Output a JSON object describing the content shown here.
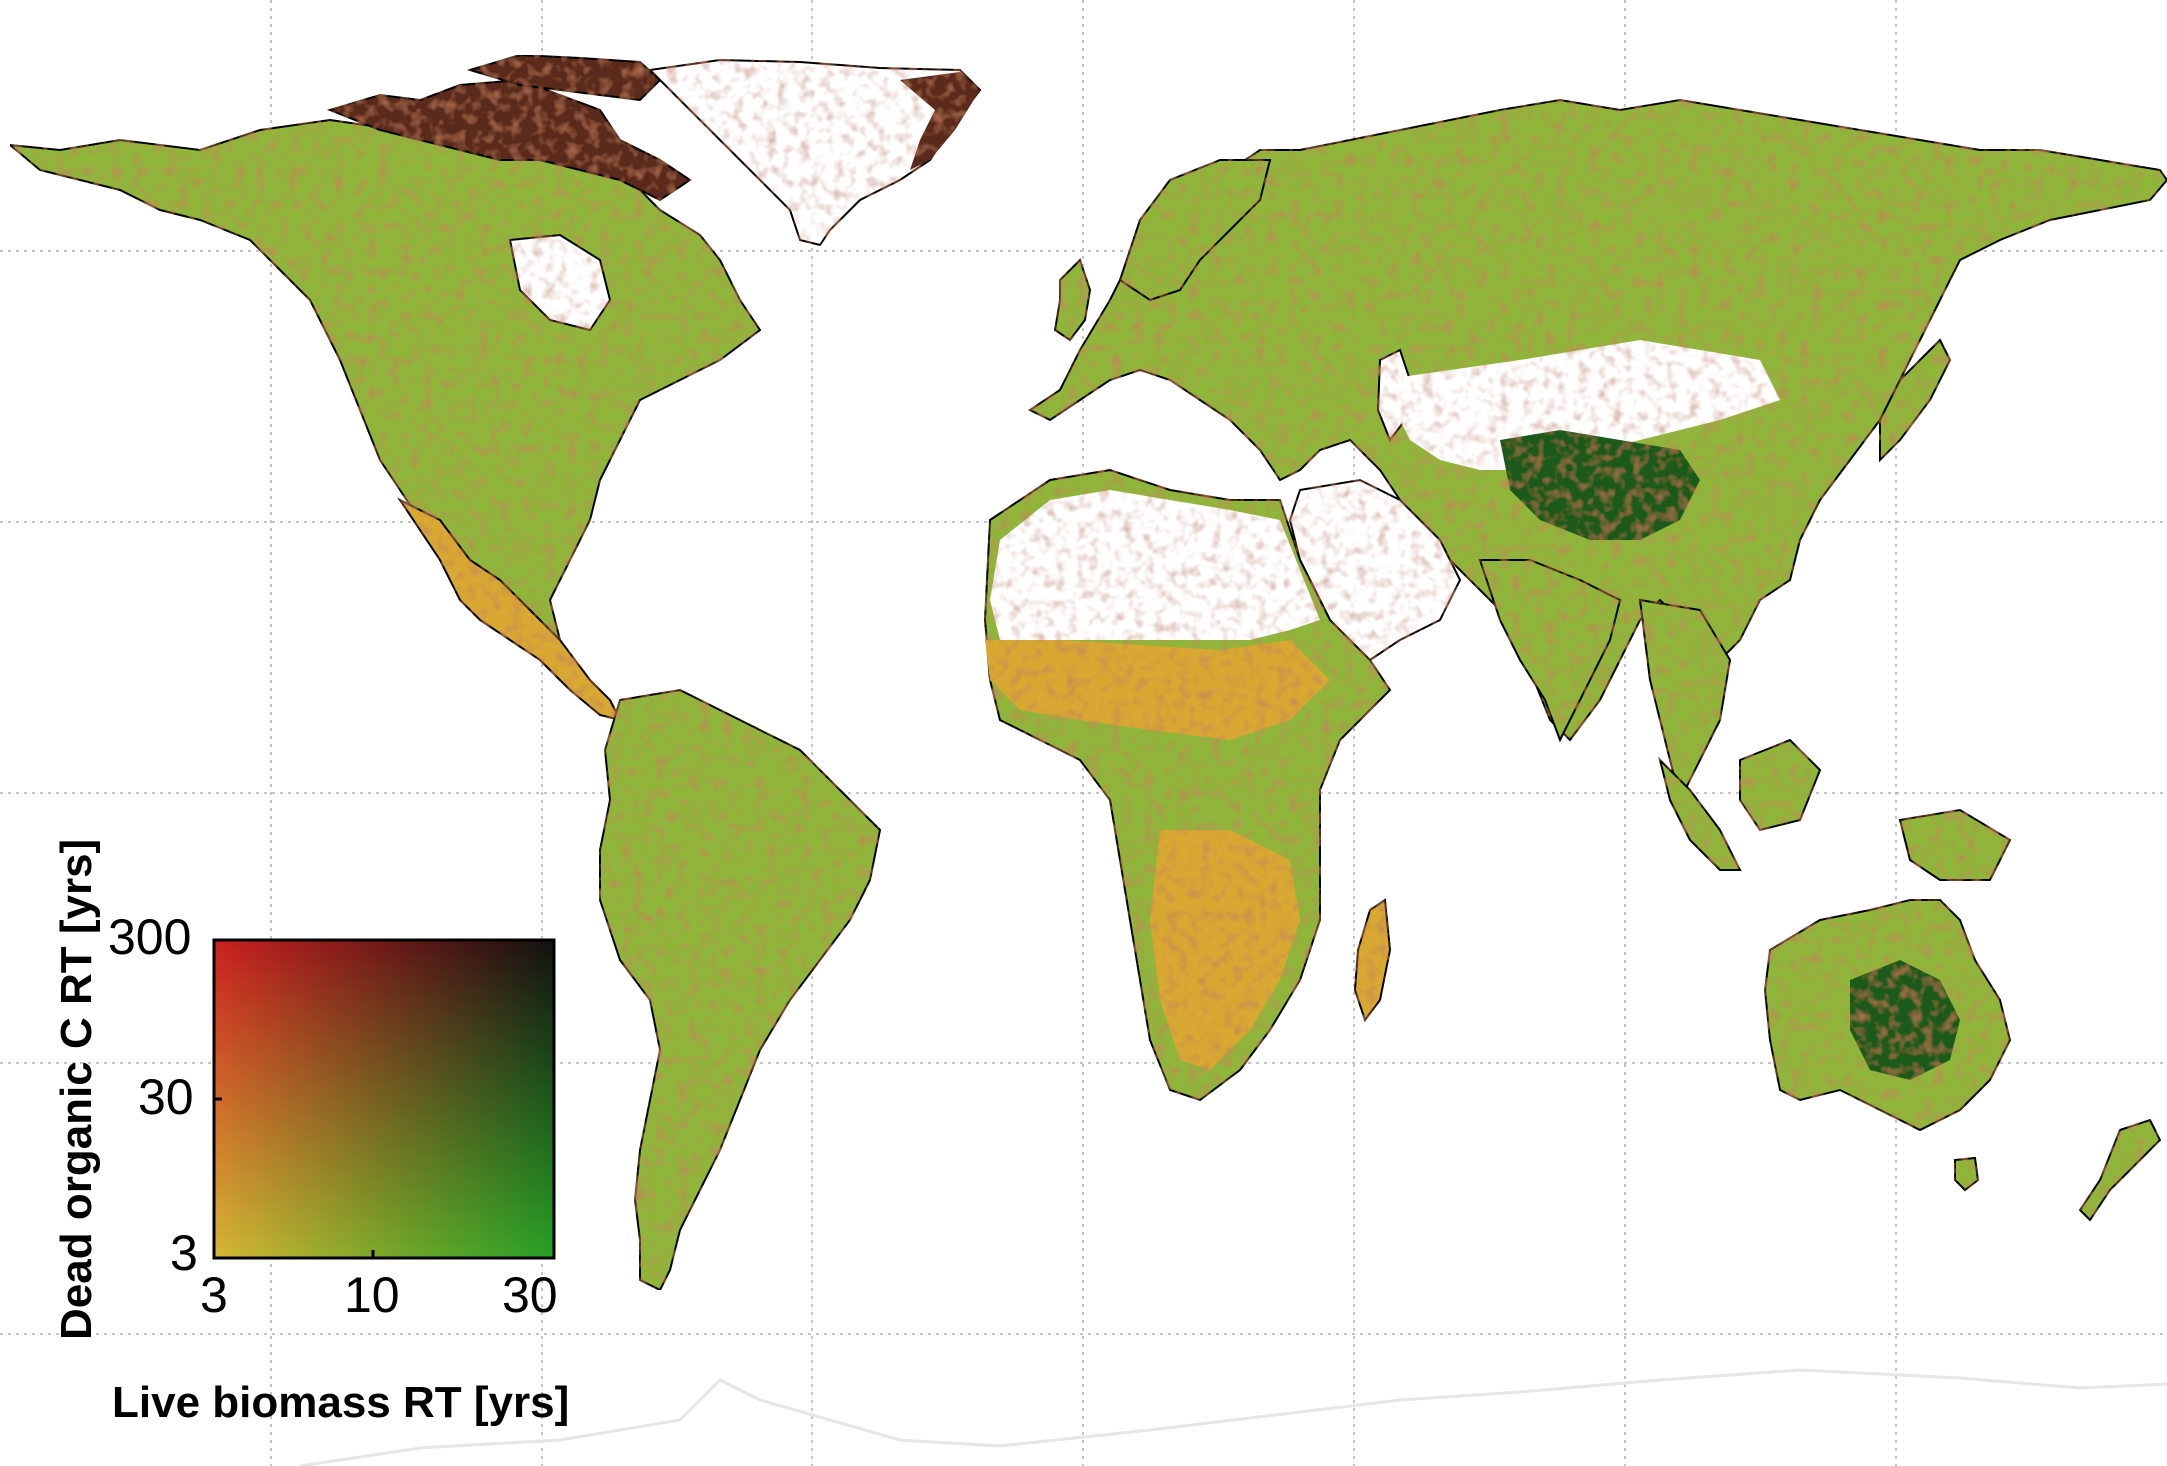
{
  "map": {
    "colors": {
      "ocean": "#ffffff",
      "grid": "#b0b0b0",
      "coast": "#000000",
      "no_data": "#ffffff",
      "antarctica_outline": "#e6e6e6",
      "low_low": "#d9e03a",
      "high_low": "#2bc72b",
      "low_high": "#cc1f1f",
      "high_high": "#111111",
      "mid": "#8fb53a"
    }
  },
  "legend": {
    "y_title": "Dead organic C RT [yrs]",
    "x_title": "Live biomass RT [yrs]",
    "y_ticks": [
      "300",
      "30",
      "3"
    ],
    "x_ticks": [
      "3",
      "10",
      "30"
    ]
  },
  "chart_data": {
    "type": "heatmap",
    "title": "",
    "xlabel": "Live biomass RT [yrs]",
    "ylabel": "Dead organic C RT [yrs]",
    "x_scale": "log",
    "y_scale": "log",
    "xlim": [
      3,
      30
    ],
    "ylim": [
      3,
      300
    ],
    "x_ticks": [
      3,
      10,
      30
    ],
    "y_ticks": [
      3,
      30,
      300
    ],
    "corner_colors": {
      "x3_y3": "#d9e03a",
      "x30_y3": "#2bc72b",
      "x3_y300": "#cc1f1f",
      "x30_y300": "#111111"
    }
  }
}
